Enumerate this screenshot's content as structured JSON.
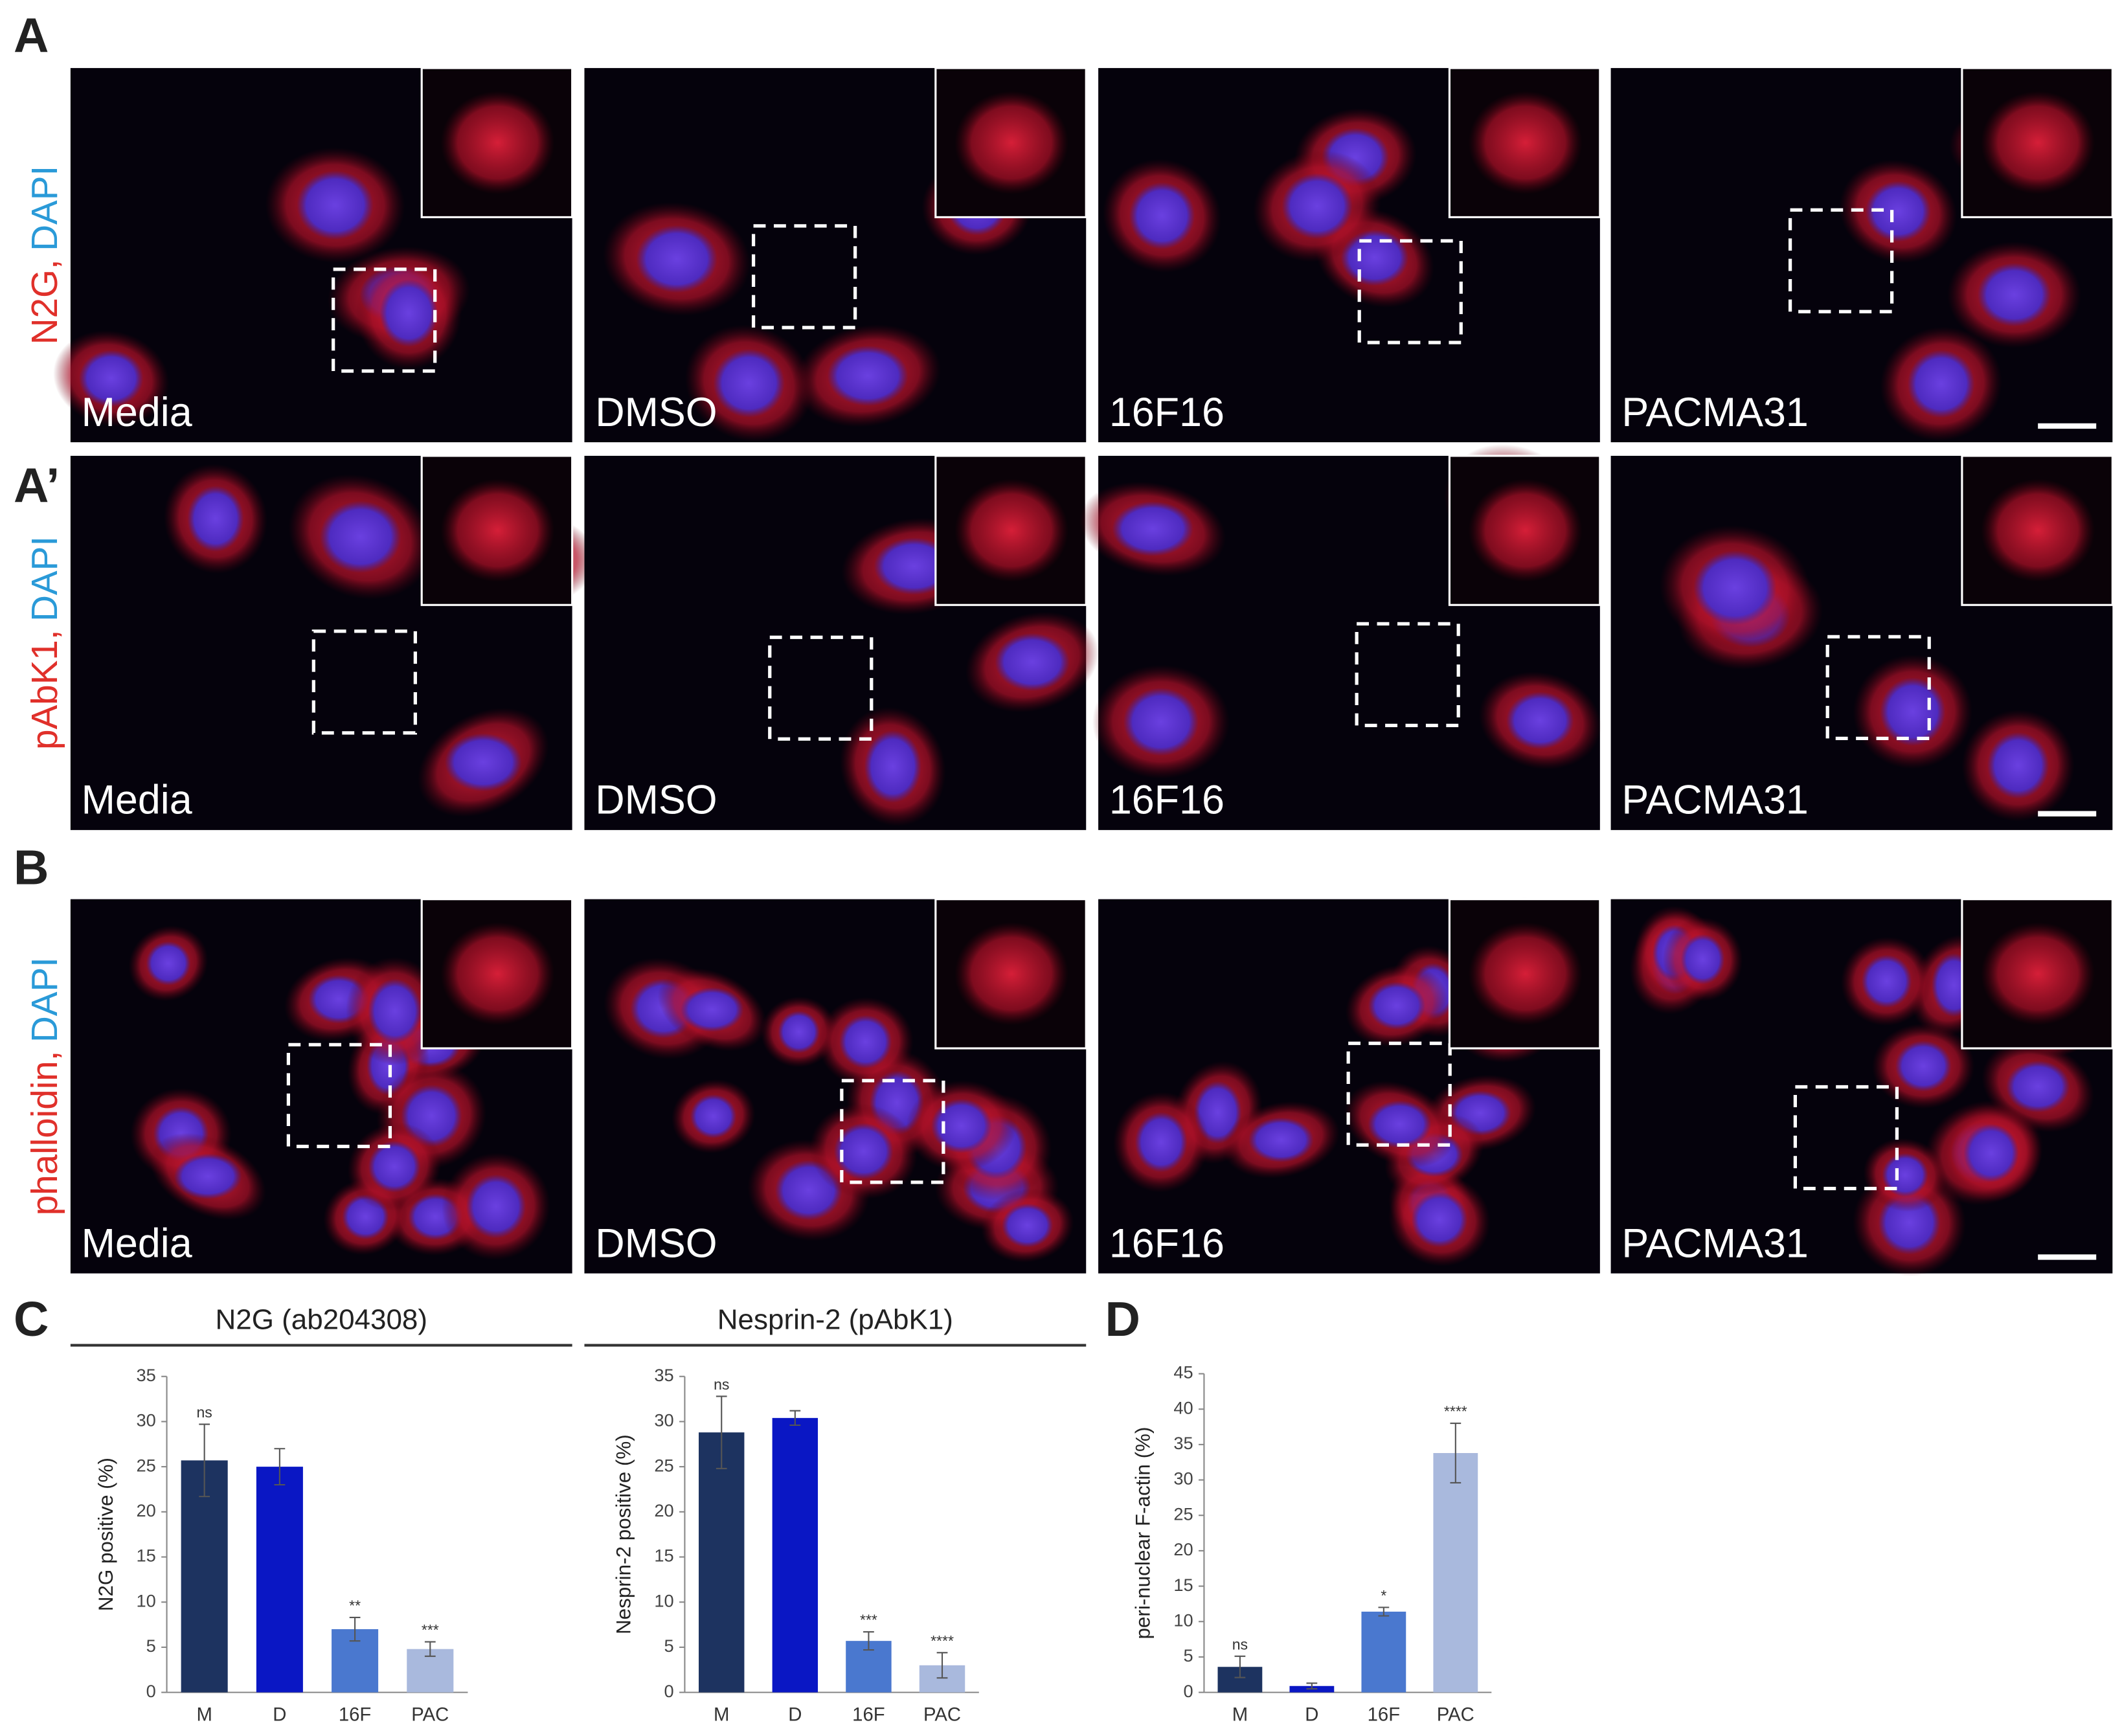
{
  "figure": {
    "panel_letters": [
      "A",
      "A’",
      "B",
      "C",
      "D"
    ],
    "conditions": [
      "Media",
      "DMSO",
      "16F16",
      "PACMA31"
    ],
    "rows": [
      {
        "stain_red": "N2G,",
        "stain_blue": "DAPI"
      },
      {
        "stain_red": "pAbK1,",
        "stain_blue": "DAPI"
      },
      {
        "stain_red": "phalloidin,",
        "stain_blue": "DAPI"
      }
    ]
  },
  "chart_data": [
    {
      "type": "bar",
      "title": "N2G (ab204308)",
      "ylabel": "N2G positive (%)",
      "categories": [
        "M",
        "D",
        "16F",
        "PAC"
      ],
      "values": [
        25.7,
        25,
        7,
        4.8
      ],
      "errors": [
        4,
        2,
        1.3,
        0.8
      ],
      "annotations": [
        "ns",
        null,
        "**",
        "***"
      ],
      "colors": [
        "#1d3360",
        "#0a17c4",
        "#4a78cf",
        "#a9b9dd"
      ],
      "ylim": [
        0,
        35
      ],
      "yticks": [
        0,
        5,
        10,
        15,
        20,
        25,
        30,
        35
      ]
    },
    {
      "type": "bar",
      "title": "Nesprin-2 (pAbK1)",
      "ylabel": "Nesprin-2 positive (%)",
      "categories": [
        "M",
        "D",
        "16F",
        "PAC"
      ],
      "values": [
        28.8,
        30.4,
        5.7,
        3
      ],
      "errors": [
        4,
        0.8,
        1,
        1.4
      ],
      "annotations": [
        "ns",
        null,
        "***",
        "****"
      ],
      "colors": [
        "#1d3360",
        "#0a17c4",
        "#4a78cf",
        "#a9b9dd"
      ],
      "ylim": [
        0,
        35
      ],
      "yticks": [
        0,
        5,
        10,
        15,
        20,
        25,
        30,
        35
      ]
    },
    {
      "type": "bar",
      "ylabel": "peri-nuclear F-actin (%)",
      "categories": [
        "M",
        "D",
        "16F",
        "PAC"
      ],
      "values": [
        3.6,
        0.9,
        11.4,
        33.8
      ],
      "errors": [
        1.5,
        0.4,
        0.6,
        4.2
      ],
      "annotations": [
        "ns",
        null,
        "*",
        "****"
      ],
      "colors": [
        "#1d3360",
        "#0a17c4",
        "#4a78cf",
        "#a9b9dd"
      ],
      "ylim": [
        0,
        45
      ],
      "yticks": [
        0,
        5,
        10,
        15,
        20,
        25,
        30,
        35,
        40,
        45
      ]
    }
  ]
}
